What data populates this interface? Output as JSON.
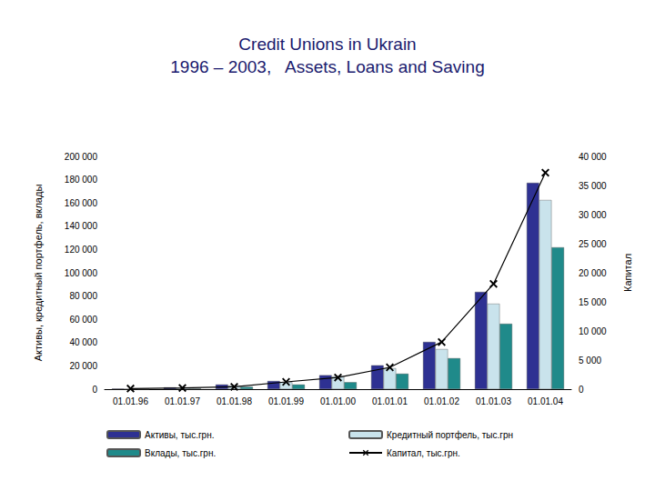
{
  "chart_data": {
    "type": "bar",
    "title": "Credit Unions in Ukrain",
    "subtitle": "1996 – 2003,   Assets, Loans and Saving",
    "y_label": "Активы, кредитный портфель, вклады",
    "y2_label": "Капитал",
    "categories": [
      "01.01.96",
      "01.01.97",
      "01.01.98",
      "01.01.99",
      "01.01.00",
      "01.01.01",
      "01.01.02",
      "01.01.03",
      "01.01.04"
    ],
    "series": [
      {
        "name": "Активы, тыс.грн.",
        "color": "#2e3192",
        "values": [
          500,
          1500,
          4000,
          7000,
          12000,
          20500,
          40600,
          83600,
          177300
        ]
      },
      {
        "name": "Кредитный портфель, тыс.грн",
        "color": "#c9e3ec",
        "values": [
          300,
          1000,
          3000,
          6000,
          11000,
          18000,
          34400,
          73400,
          162500
        ]
      },
      {
        "name": "Вклады, тыс.грн.",
        "color": "#1f8a8a",
        "values": [
          200,
          500,
          2000,
          4000,
          6000,
          13300,
          26600,
          56200,
          121900
        ]
      },
      {
        "name": "Капитал, тыс.грн.",
        "color": "#000000",
        "type": "line",
        "marker": "x",
        "axis": "y2",
        "values": [
          100,
          200,
          400,
          1250,
          2000,
          3750,
          8100,
          18100,
          37200
        ]
      }
    ],
    "ylim": [
      0,
      200000
    ],
    "yticks": [
      0,
      {
        "value": 20000,
        "label": "20 000"
      },
      {
        "value": 40000,
        "label": "40 000"
      },
      {
        "value": 60000,
        "label": "60 000"
      },
      {
        "value": 80000,
        "label": "80 000"
      },
      {
        "value": 100000,
        "label": "100 000"
      },
      {
        "value": 120000,
        "label": "120 000"
      },
      {
        "value": 140000,
        "label": "140 000"
      },
      {
        "value": 160000,
        "label": "160 000"
      },
      {
        "value": 180000,
        "label": "180 000"
      },
      {
        "value": 200000,
        "label": "200 000"
      }
    ],
    "y2lim": [
      0,
      40000
    ],
    "y2ticks": [
      0,
      {
        "value": 5000,
        "label": "5 000"
      },
      {
        "value": 10000,
        "label": "10 000"
      },
      {
        "value": 15000,
        "label": "15 000"
      },
      {
        "value": 20000,
        "label": "20 000"
      },
      {
        "value": 25000,
        "label": "25 000"
      },
      {
        "value": 30000,
        "label": "30 000"
      },
      {
        "value": 35000,
        "label": "35 000"
      },
      {
        "value": 40000,
        "label": "40 000"
      }
    ],
    "grid": false,
    "legend": "bottom"
  }
}
